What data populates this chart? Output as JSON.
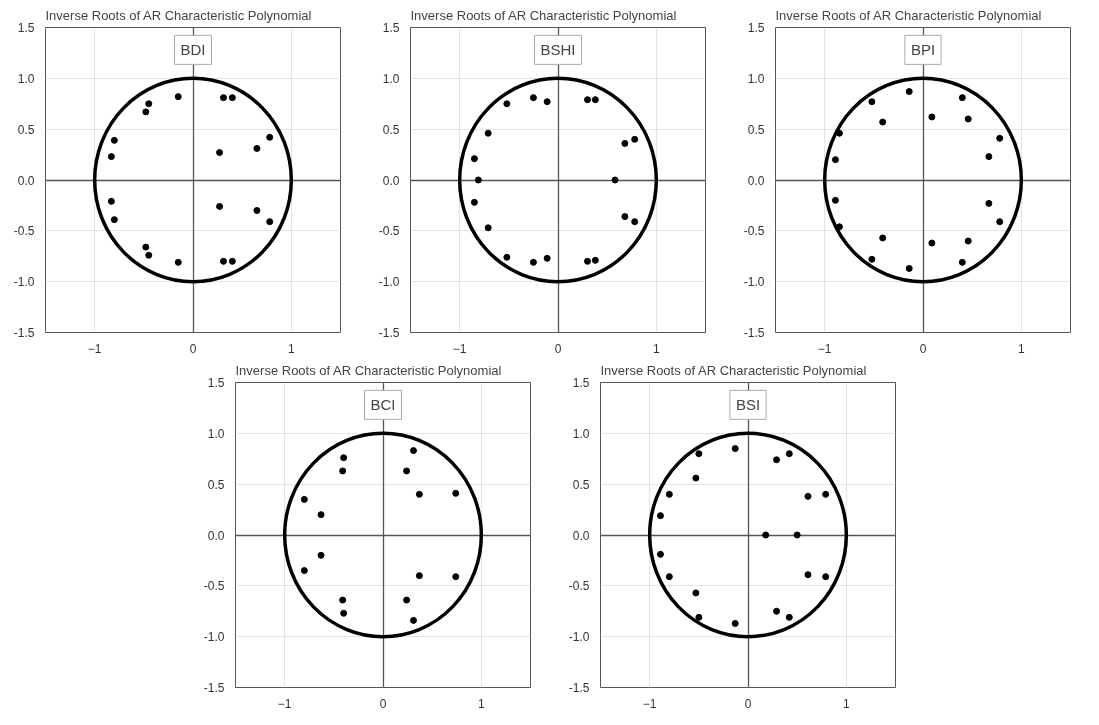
{
  "chart_data": [
    {
      "type": "scatter",
      "title": "Inverse Roots of AR Characteristic Polynomial",
      "subtitle": "BDI",
      "xlim": [
        -1.5,
        1.5
      ],
      "ylim": [
        -1.5,
        1.5
      ],
      "xticks": [
        -1,
        0,
        1
      ],
      "yticks": [
        {
          "value": -1.5,
          "label": "-1.5"
        },
        {
          "value": -1,
          "label": "-1.0"
        },
        {
          "value": -0.5,
          "label": "-0.5"
        },
        {
          "value": 0,
          "label": "0.0"
        },
        {
          "value": 0.5,
          "label": "0.5"
        },
        {
          "value": 1,
          "label": "1.0"
        },
        {
          "value": 1.5,
          "label": "1.5"
        }
      ],
      "grid": true,
      "marker": "circle",
      "series": [
        {
          "color": "#000000",
          "x": [
            -0.15,
            0.31,
            0.4,
            -0.45,
            -0.48,
            -0.8,
            -0.83,
            0.78,
            0.65,
            0.27,
            0.27,
            0.65,
            0.78,
            -0.83,
            -0.8,
            -0.48,
            -0.45,
            -0.15,
            0.31,
            0.4
          ],
          "values": [
            0.82,
            0.81,
            0.81,
            0.75,
            0.67,
            0.39,
            0.23,
            0.42,
            0.31,
            0.27,
            -0.26,
            -0.3,
            -0.41,
            -0.21,
            -0.39,
            -0.66,
            -0.74,
            -0.81,
            -0.8,
            -0.8
          ]
        }
      ]
    },
    {
      "type": "scatter",
      "title": "Inverse Roots of AR Characteristic Polynomial",
      "subtitle": "BSHI",
      "xlim": [
        -1.5,
        1.5
      ],
      "ylim": [
        -1.5,
        1.5
      ],
      "xticks": [
        -1,
        0,
        1
      ],
      "yticks": [
        {
          "value": -1.5,
          "label": "-1.5"
        },
        {
          "value": -1,
          "label": "-1.0"
        },
        {
          "value": -0.5,
          "label": "-0.5"
        },
        {
          "value": 0,
          "label": "0.0"
        },
        {
          "value": 0.5,
          "label": "0.5"
        },
        {
          "value": 1,
          "label": "1.0"
        },
        {
          "value": 1.5,
          "label": "1.5"
        }
      ],
      "grid": true,
      "marker": "circle",
      "series": [
        {
          "color": "#000000",
          "x": [
            -0.25,
            -0.11,
            -0.52,
            -0.71,
            -0.85,
            -0.81,
            -0.85,
            -0.71,
            -0.52,
            -0.25,
            -0.11,
            0.3,
            0.38,
            0.68,
            0.78,
            0.58,
            0.68,
            0.78,
            0.3,
            0.38
          ],
          "values": [
            0.81,
            0.77,
            0.75,
            0.46,
            0.21,
            0,
            -0.22,
            -0.47,
            -0.76,
            -0.81,
            -0.77,
            0.79,
            0.79,
            0.36,
            0.4,
            0,
            -0.36,
            -0.41,
            -0.8,
            -0.79
          ]
        }
      ]
    },
    {
      "type": "scatter",
      "title": "Inverse Roots of AR Characteristic Polynomial",
      "subtitle": "BPI",
      "xlim": [
        -1.5,
        1.5
      ],
      "ylim": [
        -1.5,
        1.5
      ],
      "xticks": [
        -1,
        0,
        1
      ],
      "yticks": [
        {
          "value": -1.5,
          "label": "-1.5"
        },
        {
          "value": -1,
          "label": "-1.0"
        },
        {
          "value": -0.5,
          "label": "-0.5"
        },
        {
          "value": 0,
          "label": "0.0"
        },
        {
          "value": 0.5,
          "label": "0.5"
        },
        {
          "value": 1,
          "label": "1.0"
        },
        {
          "value": 1.5,
          "label": "1.5"
        }
      ],
      "grid": true,
      "marker": "circle",
      "series": [
        {
          "color": "#000000",
          "x": [
            -0.14,
            -0.52,
            -0.41,
            -0.85,
            -0.89,
            -0.89,
            -0.85,
            -0.41,
            -0.52,
            -0.14,
            0.4,
            0.09,
            0.46,
            0.78,
            0.67,
            0.67,
            0.78,
            0.46,
            0.09,
            0.4
          ],
          "values": [
            0.87,
            0.77,
            0.57,
            0.46,
            0.2,
            -0.2,
            -0.46,
            -0.57,
            -0.78,
            -0.87,
            0.81,
            0.62,
            0.6,
            0.41,
            0.23,
            -0.23,
            -0.41,
            -0.6,
            -0.62,
            -0.81
          ]
        }
      ]
    },
    {
      "type": "scatter",
      "title": "Inverse Roots of AR Characteristic Polynomial",
      "subtitle": "BCI",
      "xlim": [
        -1.5,
        1.5
      ],
      "ylim": [
        -1.5,
        1.5
      ],
      "xticks": [
        -1,
        0,
        1
      ],
      "yticks": [
        {
          "value": -1.5,
          "label": "-1.5"
        },
        {
          "value": -1,
          "label": "-1.0"
        },
        {
          "value": -0.5,
          "label": "-0.5"
        },
        {
          "value": 0,
          "label": "0.0"
        },
        {
          "value": 0.5,
          "label": "0.5"
        },
        {
          "value": 1,
          "label": "1.0"
        },
        {
          "value": 1.5,
          "label": "1.5"
        }
      ],
      "grid": true,
      "marker": "circle",
      "series": [
        {
          "color": "#000000",
          "x": [
            -0.4,
            -0.41,
            -0.8,
            -0.63,
            -0.63,
            -0.8,
            -0.41,
            -0.4,
            0.31,
            0.24,
            0.37,
            0.74,
            0.37,
            0.74,
            0.24,
            0.31
          ],
          "values": [
            0.76,
            0.63,
            0.35,
            0.2,
            -0.2,
            -0.35,
            -0.64,
            -0.77,
            0.83,
            0.63,
            0.4,
            0.41,
            -0.4,
            -0.41,
            -0.64,
            -0.84
          ]
        }
      ]
    },
    {
      "type": "scatter",
      "title": "Inverse Roots of AR Characteristic Polynomial",
      "subtitle": "BSI",
      "xlim": [
        -1.5,
        1.5
      ],
      "ylim": [
        -1.5,
        1.5
      ],
      "xticks": [
        -1,
        0,
        1
      ],
      "yticks": [
        {
          "value": -1.5,
          "label": "-1.5"
        },
        {
          "value": -1,
          "label": "-1.0"
        },
        {
          "value": -0.5,
          "label": "-0.5"
        },
        {
          "value": 0,
          "label": "0.0"
        },
        {
          "value": 0.5,
          "label": "0.5"
        },
        {
          "value": 1,
          "label": "1.0"
        },
        {
          "value": 1.5,
          "label": "1.5"
        }
      ],
      "grid": true,
      "marker": "circle",
      "series": [
        {
          "color": "#000000",
          "x": [
            -0.13,
            -0.5,
            -0.53,
            -0.8,
            -0.89,
            -0.89,
            -0.8,
            -0.53,
            -0.5,
            -0.13,
            0.29,
            0.42,
            0.61,
            0.79,
            0.18,
            0.5,
            0.61,
            0.79,
            0.29,
            0.42
          ],
          "values": [
            0.85,
            0.8,
            0.56,
            0.4,
            0.19,
            -0.19,
            -0.41,
            -0.57,
            -0.81,
            -0.87,
            0.74,
            0.8,
            0.38,
            0.4,
            0,
            0,
            -0.39,
            -0.41,
            -0.75,
            -0.81
          ]
        }
      ]
    }
  ]
}
